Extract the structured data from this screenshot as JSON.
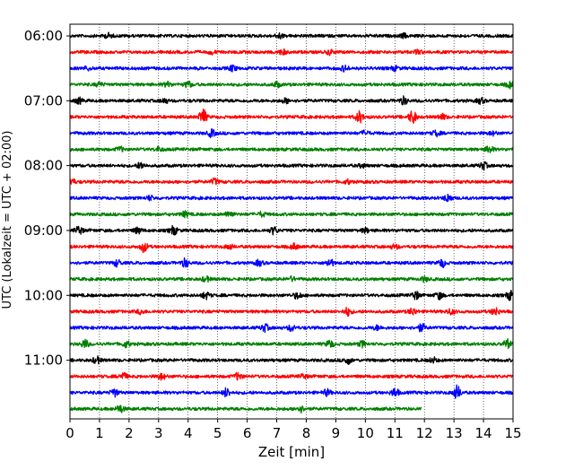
{
  "chart_data": {
    "type": "line",
    "subtype": "helicorder-seismogram",
    "title": "",
    "xlabel": "Zeit  [min]",
    "ylabel": "UTC (Lokalzeit = UTC + 02:00)",
    "xlim": [
      0,
      15
    ],
    "x_ticks": [
      "0",
      "1",
      "2",
      "3",
      "4",
      "5",
      "6",
      "7",
      "8",
      "9",
      "10",
      "11",
      "12",
      "13",
      "14",
      "15"
    ],
    "y_ticks": [
      "06:00",
      "07:00",
      "08:00",
      "09:00",
      "10:00",
      "11:00"
    ],
    "first_trace_start": "06:00",
    "trace_length_minutes": 15,
    "grid": {
      "vertical_dotted": true
    },
    "color_cycle": [
      "#000000",
      "#ff0000",
      "#0000ff",
      "#008000"
    ],
    "traces": [
      {
        "start": "06:00",
        "color": "#000000",
        "end_minute": 15,
        "events": [
          {
            "t": 1.3,
            "amp": 0.55
          },
          {
            "t": 7.1,
            "amp": 0.5
          },
          {
            "t": 11.3,
            "amp": 0.4
          }
        ]
      },
      {
        "start": "06:15",
        "color": "#ff0000",
        "end_minute": 15,
        "events": [
          {
            "t": 4.8,
            "amp": 0.35
          },
          {
            "t": 7.2,
            "amp": 0.55
          },
          {
            "t": 8.8,
            "amp": 0.5
          },
          {
            "t": 11.8,
            "amp": 0.45
          }
        ]
      },
      {
        "start": "06:30",
        "color": "#0000ff",
        "end_minute": 15,
        "events": [
          {
            "t": 0.6,
            "amp": 0.4
          },
          {
            "t": 5.5,
            "amp": 0.7
          },
          {
            "t": 9.3,
            "amp": 0.6
          },
          {
            "t": 11.0,
            "amp": 0.45
          }
        ]
      },
      {
        "start": "06:45",
        "color": "#008000",
        "end_minute": 15,
        "events": [
          {
            "t": 1.0,
            "amp": 0.5
          },
          {
            "t": 3.3,
            "amp": 0.55
          },
          {
            "t": 4.0,
            "amp": 0.7
          },
          {
            "t": 7.0,
            "amp": 0.6
          },
          {
            "t": 14.9,
            "amp": 0.7
          }
        ]
      },
      {
        "start": "07:00",
        "color": "#000000",
        "end_minute": 15,
        "events": [
          {
            "t": 0.3,
            "amp": 0.7
          },
          {
            "t": 3.2,
            "amp": 0.5
          },
          {
            "t": 7.3,
            "amp": 0.5
          },
          {
            "t": 11.3,
            "amp": 0.9
          },
          {
            "t": 13.9,
            "amp": 0.6
          }
        ]
      },
      {
        "start": "07:15",
        "color": "#ff0000",
        "end_minute": 15,
        "events": [
          {
            "t": 4.5,
            "amp": 1.8
          },
          {
            "t": 9.8,
            "amp": 1.3
          },
          {
            "t": 11.6,
            "amp": 1.6
          },
          {
            "t": 12.6,
            "amp": 0.6
          }
        ]
      },
      {
        "start": "07:30",
        "color": "#0000ff",
        "end_minute": 15,
        "events": [
          {
            "t": 4.8,
            "amp": 0.8
          },
          {
            "t": 10.0,
            "amp": 0.5
          },
          {
            "t": 12.4,
            "amp": 0.6
          },
          {
            "t": 14.3,
            "amp": 0.4
          }
        ]
      },
      {
        "start": "07:45",
        "color": "#008000",
        "end_minute": 15,
        "events": [
          {
            "t": 1.7,
            "amp": 0.5
          },
          {
            "t": 3.0,
            "amp": 0.5
          },
          {
            "t": 14.2,
            "amp": 0.8
          }
        ]
      },
      {
        "start": "08:00",
        "color": "#000000",
        "end_minute": 15,
        "events": [
          {
            "t": 2.4,
            "amp": 0.7
          },
          {
            "t": 9.9,
            "amp": 0.4
          },
          {
            "t": 14.0,
            "amp": 0.8
          }
        ]
      },
      {
        "start": "08:15",
        "color": "#ff0000",
        "end_minute": 15,
        "events": [
          {
            "t": 0.05,
            "amp": 0.8
          },
          {
            "t": 4.9,
            "amp": 0.7
          },
          {
            "t": 9.4,
            "amp": 0.4
          }
        ]
      },
      {
        "start": "08:30",
        "color": "#0000ff",
        "end_minute": 15,
        "events": [
          {
            "t": 2.7,
            "amp": 0.5
          },
          {
            "t": 12.8,
            "amp": 0.9
          }
        ]
      },
      {
        "start": "08:45",
        "color": "#008000",
        "end_minute": 15,
        "events": [
          {
            "t": 3.9,
            "amp": 0.6
          },
          {
            "t": 5.4,
            "amp": 0.8
          },
          {
            "t": 6.5,
            "amp": 0.5
          }
        ]
      },
      {
        "start": "09:00",
        "color": "#000000",
        "end_minute": 15,
        "events": [
          {
            "t": 0.3,
            "amp": 1.0
          },
          {
            "t": 2.3,
            "amp": 0.7
          },
          {
            "t": 3.5,
            "amp": 1.0
          },
          {
            "t": 6.9,
            "amp": 0.8
          },
          {
            "t": 10.0,
            "amp": 0.5
          }
        ]
      },
      {
        "start": "09:15",
        "color": "#ff0000",
        "end_minute": 15,
        "events": [
          {
            "t": 2.5,
            "amp": 1.1
          },
          {
            "t": 5.4,
            "amp": 0.5
          },
          {
            "t": 7.6,
            "amp": 0.6
          },
          {
            "t": 11.0,
            "amp": 0.5
          }
        ]
      },
      {
        "start": "09:30",
        "color": "#0000ff",
        "end_minute": 15,
        "events": [
          {
            "t": 1.6,
            "amp": 0.7
          },
          {
            "t": 3.9,
            "amp": 1.0
          },
          {
            "t": 6.4,
            "amp": 0.6
          },
          {
            "t": 8.8,
            "amp": 0.9
          },
          {
            "t": 12.6,
            "amp": 0.9
          }
        ]
      },
      {
        "start": "09:45",
        "color": "#008000",
        "end_minute": 15,
        "events": [
          {
            "t": 4.6,
            "amp": 0.6
          },
          {
            "t": 7.5,
            "amp": 0.5
          },
          {
            "t": 12.0,
            "amp": 0.5
          }
        ]
      },
      {
        "start": "10:00",
        "color": "#000000",
        "end_minute": 15,
        "events": [
          {
            "t": 4.6,
            "amp": 0.8
          },
          {
            "t": 7.7,
            "amp": 0.7
          },
          {
            "t": 11.7,
            "amp": 0.9
          },
          {
            "t": 12.5,
            "amp": 0.8
          },
          {
            "t": 14.9,
            "amp": 1.0
          }
        ]
      },
      {
        "start": "10:15",
        "color": "#ff0000",
        "end_minute": 15,
        "events": [
          {
            "t": 2.4,
            "amp": 0.5
          },
          {
            "t": 9.4,
            "amp": 0.9
          },
          {
            "t": 11.6,
            "amp": 0.8
          },
          {
            "t": 12.9,
            "amp": 0.6
          },
          {
            "t": 14.4,
            "amp": 0.9
          }
        ]
      },
      {
        "start": "10:30",
        "color": "#0000ff",
        "end_minute": 15,
        "events": [
          {
            "t": 6.6,
            "amp": 0.8
          },
          {
            "t": 7.5,
            "amp": 0.7
          },
          {
            "t": 11.9,
            "amp": 0.9
          },
          {
            "t": 10.4,
            "amp": 0.5
          }
        ]
      },
      {
        "start": "10:45",
        "color": "#008000",
        "end_minute": 15,
        "events": [
          {
            "t": 0.5,
            "amp": 1.0
          },
          {
            "t": 1.9,
            "amp": 0.7
          },
          {
            "t": 8.8,
            "amp": 0.9
          },
          {
            "t": 9.9,
            "amp": 0.6
          },
          {
            "t": 14.8,
            "amp": 1.0
          }
        ]
      },
      {
        "start": "11:00",
        "color": "#000000",
        "end_minute": 15,
        "events": [
          {
            "t": 0.9,
            "amp": 0.8
          },
          {
            "t": 9.4,
            "amp": 0.8
          },
          {
            "t": 12.3,
            "amp": 0.6
          }
        ]
      },
      {
        "start": "11:15",
        "color": "#ff0000",
        "end_minute": 15,
        "events": [
          {
            "t": 1.8,
            "amp": 0.8
          },
          {
            "t": 3.1,
            "amp": 0.7
          },
          {
            "t": 5.7,
            "amp": 0.8
          },
          {
            "t": 7.9,
            "amp": 0.5
          }
        ]
      },
      {
        "start": "11:30",
        "color": "#0000ff",
        "end_minute": 15,
        "events": [
          {
            "t": 1.5,
            "amp": 0.9
          },
          {
            "t": 5.3,
            "amp": 1.0
          },
          {
            "t": 8.7,
            "amp": 0.7
          },
          {
            "t": 11.0,
            "amp": 1.0
          },
          {
            "t": 13.1,
            "amp": 1.6
          }
        ]
      },
      {
        "start": "11:45",
        "color": "#008000",
        "end_minute": 11.9,
        "events": [
          {
            "t": 1.7,
            "amp": 0.9
          },
          {
            "t": 7.8,
            "amp": 0.7
          }
        ]
      }
    ]
  }
}
